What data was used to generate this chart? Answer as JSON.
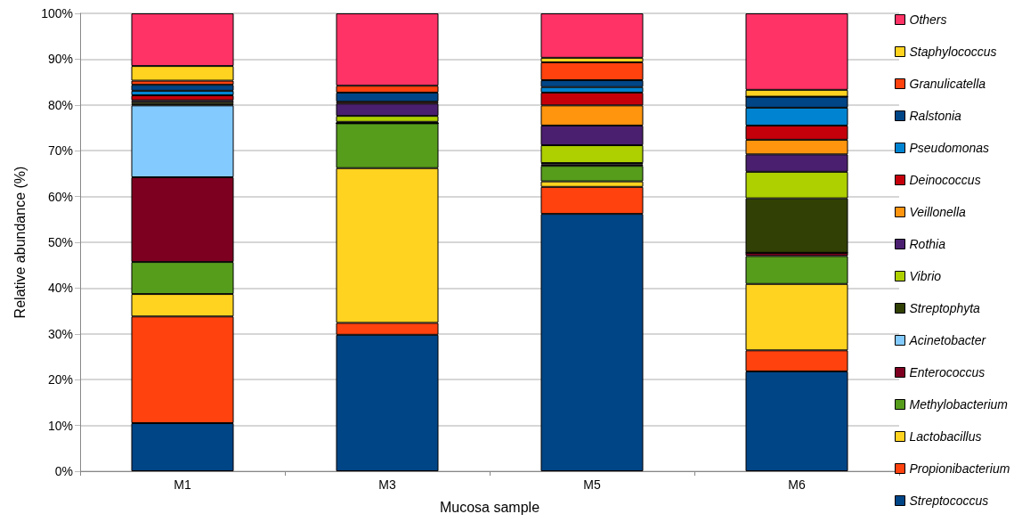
{
  "chart_data": {
    "type": "bar",
    "stacked": true,
    "xlabel": "Mucosa sample",
    "ylabel": "Relative abundance (%)",
    "categories": [
      "M1",
      "M3",
      "M5",
      "M6"
    ],
    "ylim": [
      0,
      100
    ],
    "yticks": [
      {
        "value": 0,
        "label": "0%"
      },
      {
        "value": 10,
        "label": "10%"
      },
      {
        "value": 20,
        "label": "20%"
      },
      {
        "value": 30,
        "label": "30%"
      },
      {
        "value": 40,
        "label": "40%"
      },
      {
        "value": 50,
        "label": "50%"
      },
      {
        "value": 60,
        "label": "60%"
      },
      {
        "value": 70,
        "label": "70%"
      },
      {
        "value": 80,
        "label": "80%"
      },
      {
        "value": 90,
        "label": "90%"
      },
      {
        "value": 100,
        "label": "100%"
      }
    ],
    "grid": "y",
    "legend": "right",
    "series": [
      {
        "name": "Streptococcus",
        "color": "#004586",
        "values": [
          10.5,
          29.8,
          56.2,
          21.8
        ]
      },
      {
        "name": "Propionibacterium",
        "color": "#ff420e",
        "values": [
          23.3,
          2.6,
          5.9,
          4.6
        ]
      },
      {
        "name": "Lactobacillus",
        "color": "#ffd320",
        "values": [
          4.9,
          33.8,
          1.2,
          14.5
        ]
      },
      {
        "name": "Methylobacterium",
        "color": "#579d1c",
        "values": [
          7.0,
          9.8,
          3.4,
          6.1
        ]
      },
      {
        "name": "Enterococcus",
        "color": "#7e0021",
        "values": [
          18.5,
          0,
          0.3,
          0.7
        ]
      },
      {
        "name": "Acinetobacter",
        "color": "#83caff",
        "values": [
          15.7,
          0,
          null,
          0
        ]
      },
      {
        "name": "Streptophyta",
        "color": "#314004",
        "values": [
          0.3,
          0.3,
          0.3,
          11.9
        ]
      },
      {
        "name": "Vibrio",
        "color": "#aecf00",
        "values": [
          0.4,
          1.3,
          3.9,
          5.8
        ]
      },
      {
        "name": "Rothia",
        "color": "#4b1f6f",
        "values": [
          0.4,
          2.7,
          4.3,
          3.8
        ]
      },
      {
        "name": "Veillonella",
        "color": "#ff950e",
        "values": [
          null,
          null,
          4.4,
          3.2
        ]
      },
      {
        "name": "Deinococcus",
        "color": "#c5000b",
        "values": [
          1.1,
          0.4,
          2.8,
          3.1
        ]
      },
      {
        "name": "Pseudomonas",
        "color": "#0084d1",
        "values": [
          1.0,
          null,
          1.2,
          3.9
        ]
      },
      {
        "name": "Ralstonia",
        "color": "#004586",
        "values": [
          1.3,
          2.0,
          1.5,
          2.4
        ]
      },
      {
        "name": "Granulicatella",
        "color": "#ff420e",
        "values": [
          0.9,
          1.5,
          3.9,
          0
        ]
      },
      {
        "name": "Staphylococcus",
        "color": "#ffd320",
        "values": [
          3.2,
          null,
          1.0,
          1.5
        ]
      },
      {
        "name": "Others",
        "color": "#ff3366",
        "values": [
          11.5,
          15.8,
          9.7,
          16.7
        ]
      }
    ]
  }
}
